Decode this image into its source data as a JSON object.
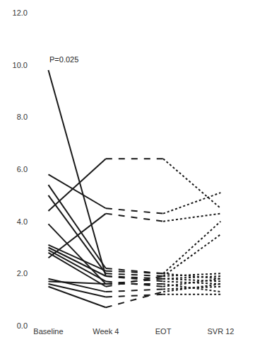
{
  "chart_data": {
    "type": "line",
    "categories": [
      "Baseline",
      "Week 4",
      "EOT",
      "SVR 12"
    ],
    "color": "#1a1a1a",
    "ylim": [
      0,
      12
    ],
    "yticks": [
      {
        "value": 0,
        "label": "0.0"
      },
      {
        "value": 2,
        "label": "2.0"
      },
      {
        "value": 4,
        "label": "4.0"
      },
      {
        "value": 6,
        "label": "6.0"
      },
      {
        "value": 8,
        "label": "8.0"
      },
      {
        "value": 10,
        "label": "10.0"
      },
      {
        "value": 12,
        "label": "12.0"
      }
    ],
    "grid": false,
    "annotations": [
      {
        "text": "P=0.025",
        "x": "Baseline",
        "y": 10.2
      }
    ],
    "series": [
      {
        "values": [
          9.8,
          1.9,
          null,
          null
        ],
        "line_style": "solid"
      },
      {
        "values": [
          null,
          1.9,
          1.8,
          null
        ],
        "line_style": "dashed"
      },
      {
        "values": [
          null,
          null,
          1.8,
          1.7
        ],
        "line_style": "dotted"
      },
      {
        "values": [
          5.8,
          4.5,
          null,
          null
        ],
        "line_style": "solid"
      },
      {
        "values": [
          null,
          4.5,
          4.3,
          null
        ],
        "line_style": "dashed"
      },
      {
        "values": [
          null,
          null,
          4.3,
          5.1
        ],
        "line_style": "dotted"
      },
      {
        "values": [
          4.4,
          6.4,
          null,
          null
        ],
        "line_style": "solid"
      },
      {
        "values": [
          null,
          6.4,
          6.4,
          null
        ],
        "line_style": "dashed"
      },
      {
        "values": [
          null,
          null,
          6.4,
          4.5
        ],
        "line_style": "dotted"
      },
      {
        "values": [
          2.6,
          4.3,
          null,
          null
        ],
        "line_style": "solid"
      },
      {
        "values": [
          null,
          4.3,
          4.0,
          null
        ],
        "line_style": "dashed"
      },
      {
        "values": [
          null,
          null,
          4.0,
          4.3
        ],
        "line_style": "dotted"
      },
      {
        "values": [
          5.4,
          2.2,
          null,
          null
        ],
        "line_style": "solid"
      },
      {
        "values": [
          null,
          2.2,
          2.0,
          null
        ],
        "line_style": "dashed"
      },
      {
        "values": [
          null,
          null,
          2.0,
          4.0
        ],
        "line_style": "dotted"
      },
      {
        "values": [
          5.0,
          2.0,
          null,
          null
        ],
        "line_style": "solid"
      },
      {
        "values": [
          null,
          2.0,
          1.9,
          null
        ],
        "line_style": "dashed"
      },
      {
        "values": [
          null,
          null,
          1.9,
          3.5
        ],
        "line_style": "dotted"
      },
      {
        "values": [
          3.9,
          1.6,
          null,
          null
        ],
        "line_style": "solid"
      },
      {
        "values": [
          null,
          1.6,
          1.8,
          null
        ],
        "line_style": "dashed"
      },
      {
        "values": [
          null,
          null,
          1.8,
          1.9
        ],
        "line_style": "dotted"
      },
      {
        "values": [
          3.1,
          2.1,
          null,
          null
        ],
        "line_style": "solid"
      },
      {
        "values": [
          null,
          2.1,
          2.0,
          null
        ],
        "line_style": "dashed"
      },
      {
        "values": [
          null,
          null,
          2.0,
          1.8
        ],
        "line_style": "dotted"
      },
      {
        "values": [
          3.0,
          1.9,
          null,
          null
        ],
        "line_style": "solid"
      },
      {
        "values": [
          null,
          1.9,
          1.7,
          null
        ],
        "line_style": "dashed"
      },
      {
        "values": [
          null,
          null,
          1.7,
          1.6
        ],
        "line_style": "dotted"
      },
      {
        "values": [
          2.9,
          1.7,
          null,
          null
        ],
        "line_style": "solid"
      },
      {
        "values": [
          null,
          1.7,
          1.5,
          null
        ],
        "line_style": "dashed"
      },
      {
        "values": [
          null,
          null,
          1.5,
          1.8
        ],
        "line_style": "dotted"
      },
      {
        "values": [
          2.8,
          1.5,
          null,
          null
        ],
        "line_style": "solid"
      },
      {
        "values": [
          null,
          1.5,
          1.9,
          null
        ],
        "line_style": "dashed"
      },
      {
        "values": [
          null,
          null,
          1.9,
          2.0
        ],
        "line_style": "dotted"
      },
      {
        "values": [
          1.8,
          1.3,
          null,
          null
        ],
        "line_style": "solid"
      },
      {
        "values": [
          null,
          1.3,
          1.4,
          null
        ],
        "line_style": "dashed"
      },
      {
        "values": [
          null,
          null,
          1.4,
          1.5
        ],
        "line_style": "dotted"
      },
      {
        "values": [
          1.7,
          1.6,
          null,
          null
        ],
        "line_style": "solid"
      },
      {
        "values": [
          null,
          1.6,
          1.6,
          null
        ],
        "line_style": "dashed"
      },
      {
        "values": [
          null,
          null,
          1.6,
          1.3
        ],
        "line_style": "dotted"
      },
      {
        "values": [
          1.6,
          1.1,
          null,
          null
        ],
        "line_style": "solid"
      },
      {
        "values": [
          null,
          1.1,
          1.2,
          null
        ],
        "line_style": "dashed"
      },
      {
        "values": [
          null,
          null,
          1.2,
          1.2
        ],
        "line_style": "dotted"
      },
      {
        "values": [
          1.5,
          0.7,
          null,
          null
        ],
        "line_style": "solid"
      },
      {
        "values": [
          null,
          0.7,
          1.3,
          null
        ],
        "line_style": "dashed"
      },
      {
        "values": [
          null,
          null,
          1.3,
          1.6
        ],
        "line_style": "dotted"
      }
    ]
  }
}
